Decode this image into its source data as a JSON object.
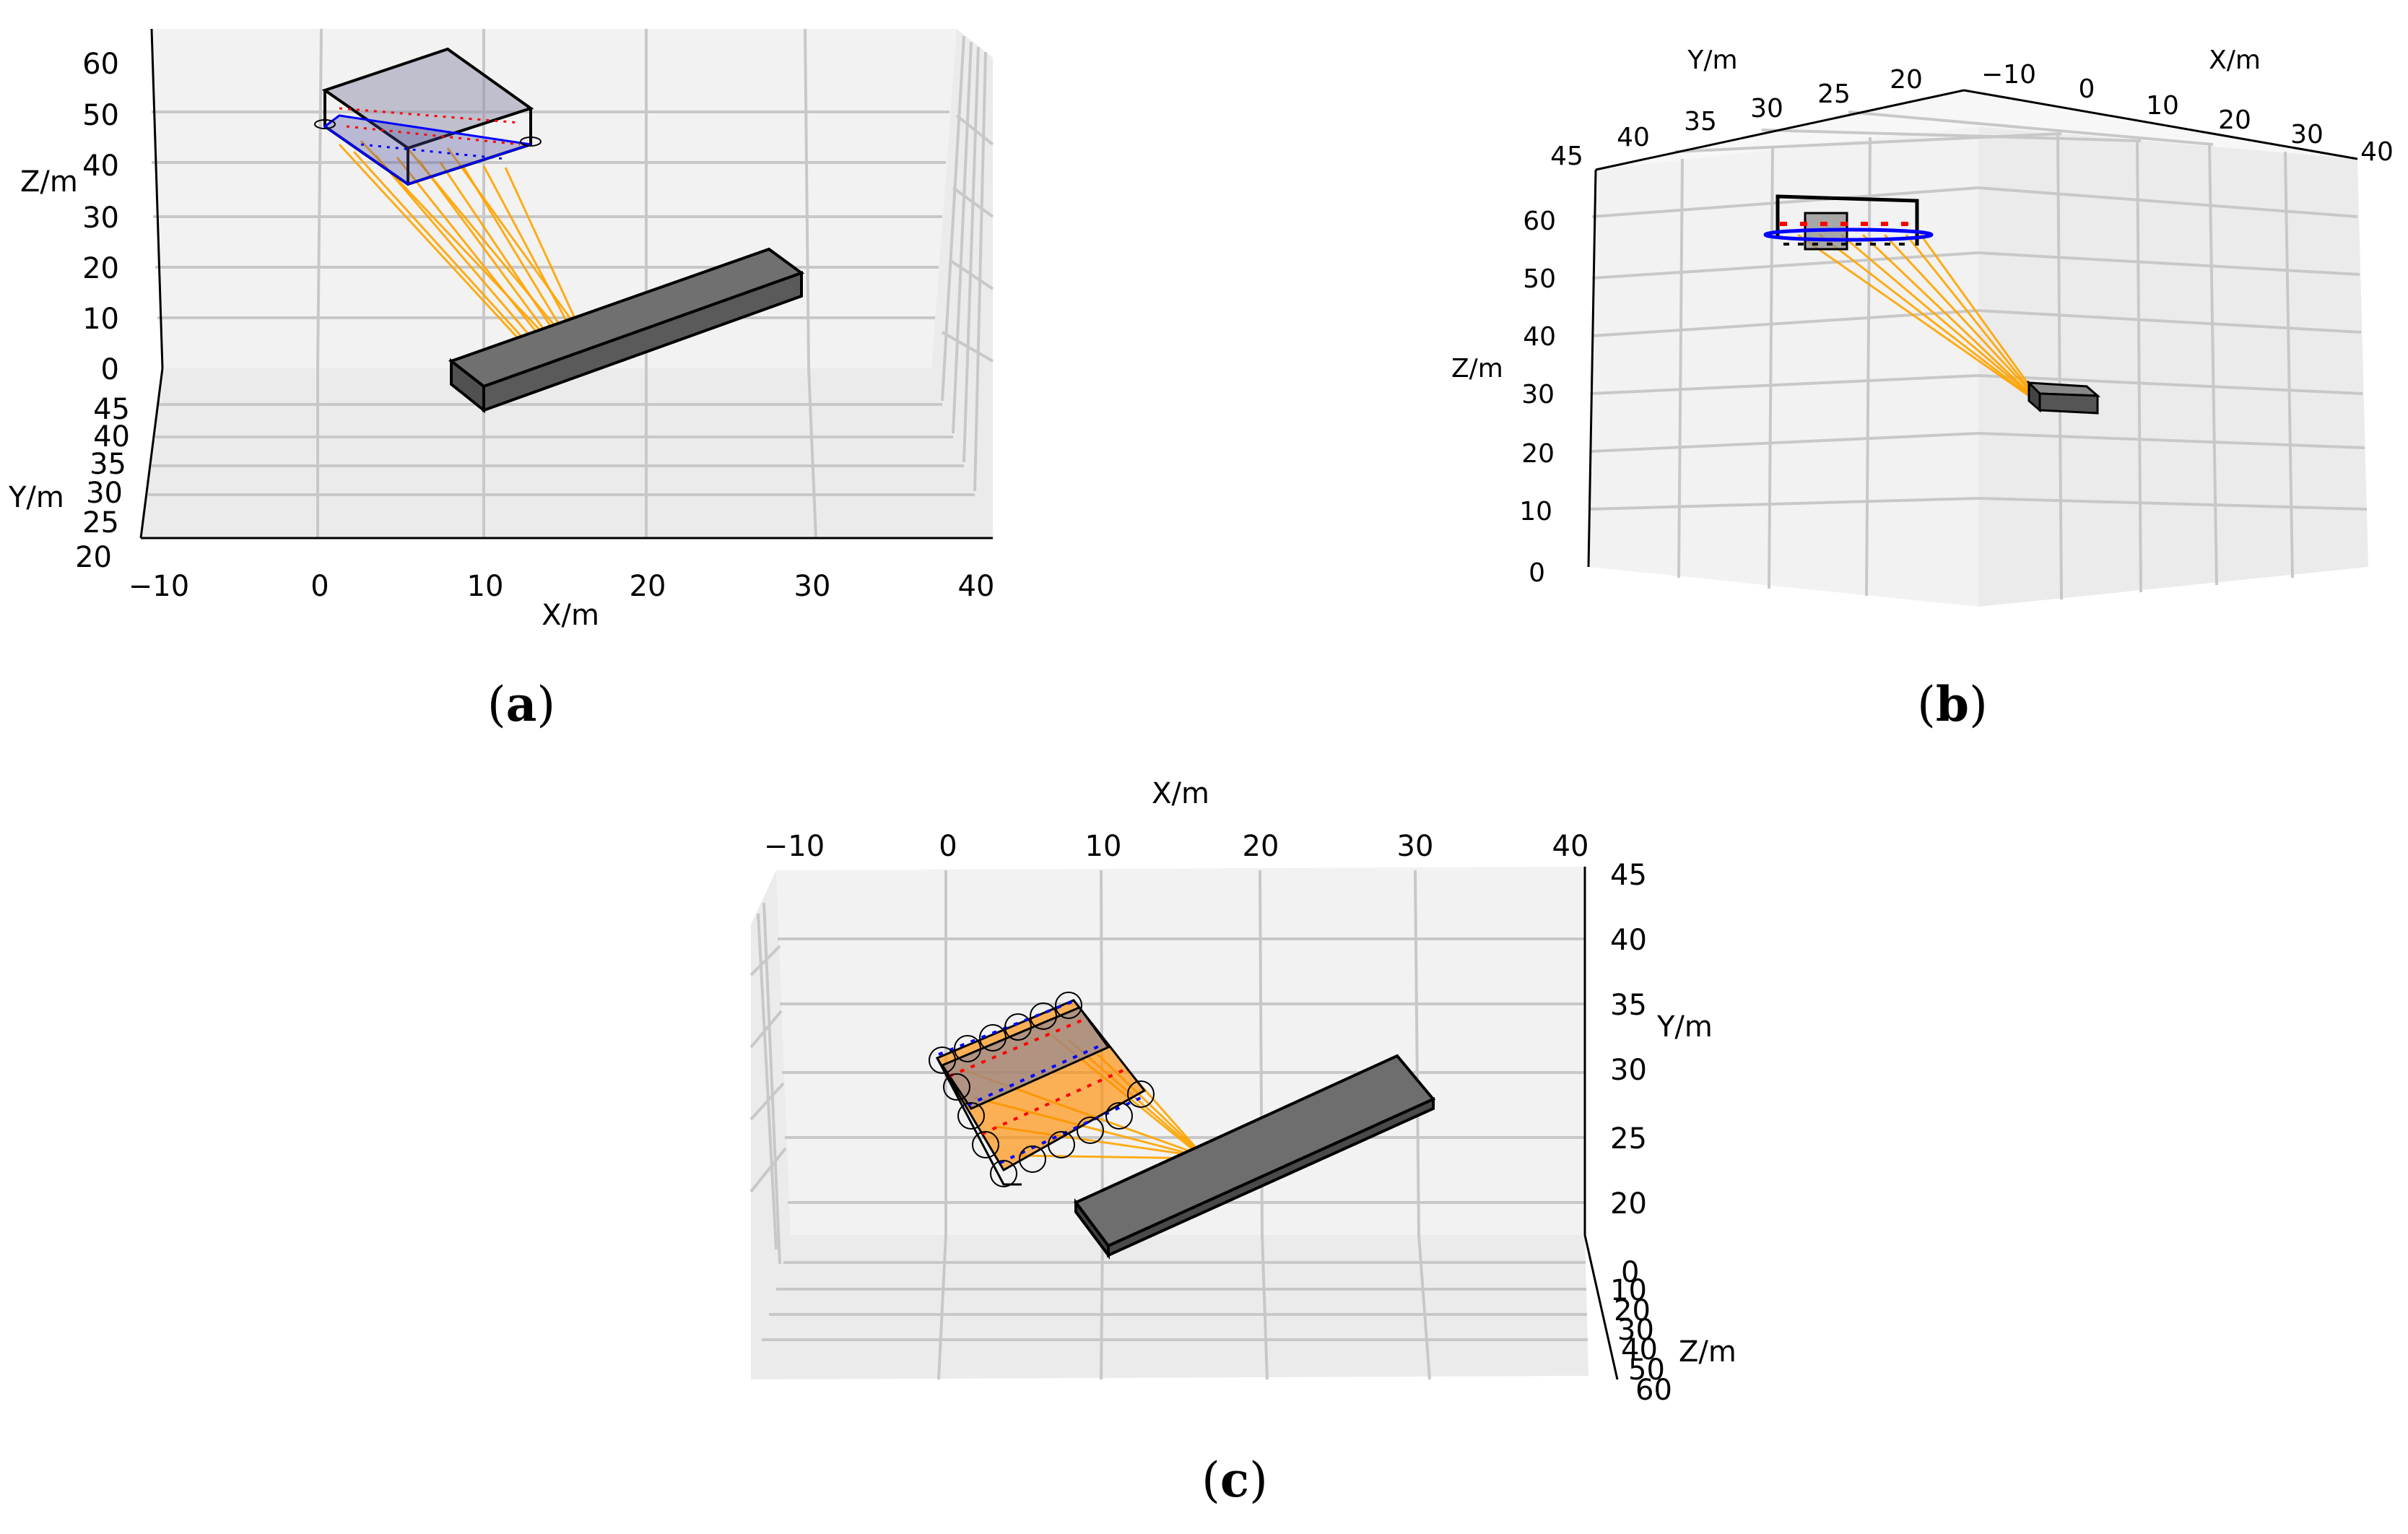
{
  "figure": {
    "captions": [
      "a",
      "b",
      "c"
    ]
  },
  "chart_data": [
    {
      "panel": "a",
      "type": "3d-scene",
      "xlabel": "X/m",
      "ylabel": "Y/m",
      "zlabel": "Z/m",
      "x_ticks": [
        "−10",
        "0",
        "10",
        "20",
        "30",
        "40"
      ],
      "y_ticks": [
        "20",
        "25",
        "30",
        "35",
        "40",
        "45"
      ],
      "z_ticks": [
        "0",
        "10",
        "20",
        "30",
        "40",
        "50",
        "60"
      ],
      "xlim": [
        -10,
        40
      ],
      "ylim": [
        20,
        45
      ],
      "zlim": [
        0,
        65
      ],
      "grid": true,
      "colors": {
        "beam": "#ffa500",
        "target": "#666666",
        "array_edge": "#000000",
        "emitter": "#0000ff",
        "marker": "#ff0000"
      }
    },
    {
      "panel": "b",
      "type": "3d-scene",
      "xlabel": "X/m",
      "ylabel": "Y/m",
      "zlabel": "Z/m",
      "x_ticks": [
        "−10",
        "0",
        "10",
        "20",
        "30",
        "40"
      ],
      "y_ticks": [
        "45",
        "40",
        "35",
        "30",
        "25",
        "20"
      ],
      "z_ticks": [
        "0",
        "10",
        "20",
        "30",
        "40",
        "50",
        "60"
      ],
      "xlim": [
        -10,
        40
      ],
      "ylim": [
        20,
        45
      ],
      "zlim": [
        0,
        65
      ],
      "grid": true
    },
    {
      "panel": "c",
      "type": "3d-scene",
      "xlabel": "X/m",
      "ylabel": "Y/m",
      "zlabel": "Z/m",
      "x_ticks": [
        "−10",
        "0",
        "10",
        "20",
        "30",
        "40"
      ],
      "y_ticks": [
        "20",
        "25",
        "30",
        "35",
        "40",
        "45"
      ],
      "z_ticks": [
        "0",
        "10",
        "20",
        "30",
        "40",
        "50",
        "60"
      ],
      "xlim": [
        -10,
        40
      ],
      "ylim": [
        20,
        45
      ],
      "zlim": [
        0,
        60
      ],
      "grid": true
    }
  ]
}
